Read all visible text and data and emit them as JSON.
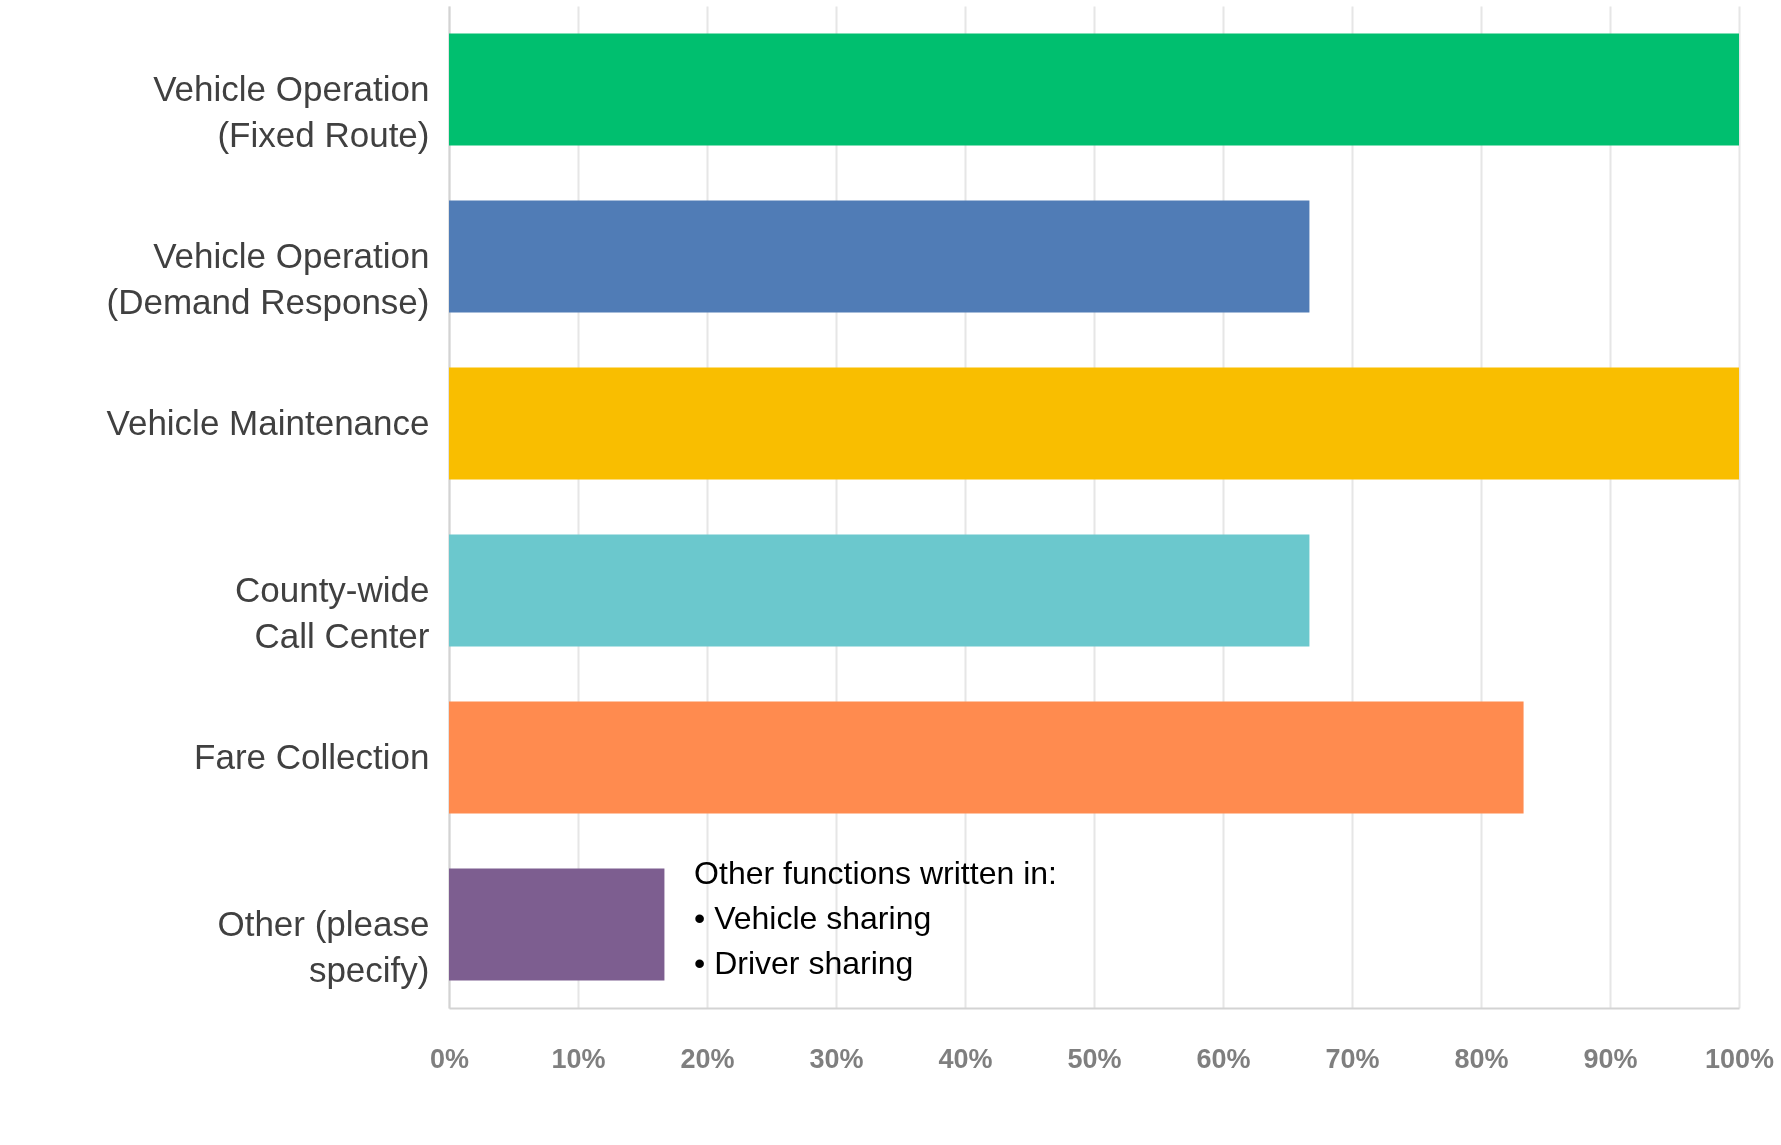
{
  "chart_data": {
    "type": "bar",
    "orientation": "horizontal",
    "categories": [
      "Vehicle Operation\n(Fixed Route)",
      "Vehicle Operation\n(Demand Response)",
      "Vehicle Maintenance",
      "County-wide\nCall Center",
      "Fare Collection",
      "Other (please\nspecify)"
    ],
    "values": [
      100,
      66.7,
      100,
      66.7,
      83.3,
      16.7
    ],
    "colors": [
      "#00bf6f",
      "#507cb6",
      "#f9be00",
      "#6bc8cd",
      "#ff8b4f",
      "#7d5e90"
    ],
    "xlim": [
      0,
      100
    ],
    "xticks": [
      {
        "value": 0,
        "label": "0%"
      },
      {
        "value": 10,
        "label": "10%"
      },
      {
        "value": 20,
        "label": "20%"
      },
      {
        "value": 30,
        "label": "30%"
      },
      {
        "value": 40,
        "label": "40%"
      },
      {
        "value": 50,
        "label": "50%"
      },
      {
        "value": 60,
        "label": "60%"
      },
      {
        "value": 70,
        "label": "70%"
      },
      {
        "value": 80,
        "label": "80%"
      },
      {
        "value": 90,
        "label": "90%"
      },
      {
        "value": 100,
        "label": "100%"
      }
    ],
    "grid": "x",
    "annotations": [
      "Other functions written in:\n• Vehicle sharing\n• Driver sharing"
    ]
  }
}
